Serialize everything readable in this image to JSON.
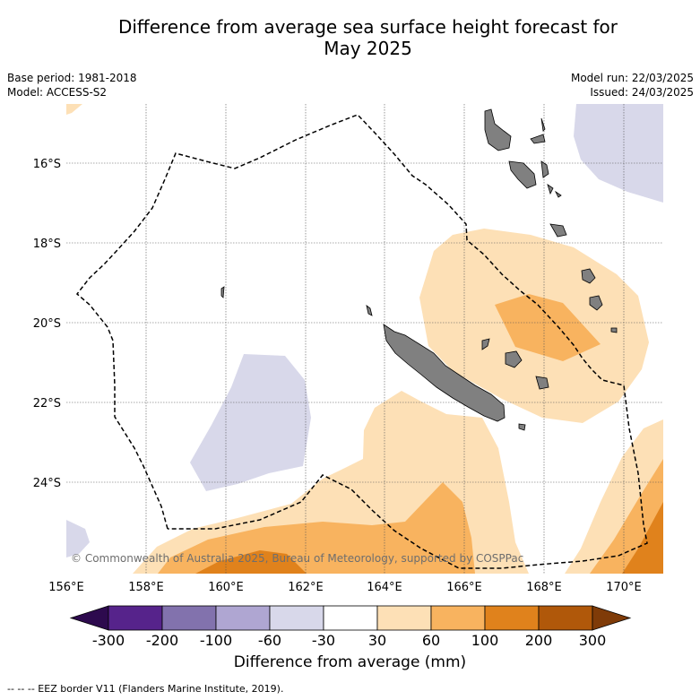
{
  "title_line1": "Difference from average sea surface height forecast for",
  "title_line2": "May 2025",
  "base_period": "Base period: 1981-2018",
  "model": "Model: ACCESS-S2",
  "model_run": "Model run: 22/03/2025",
  "issued": "Issued: 24/03/2025",
  "lat_labels": [
    "16°S",
    "18°S",
    "20°S",
    "22°S",
    "24°S"
  ],
  "lon_labels": [
    "156°E",
    "158°E",
    "160°E",
    "162°E",
    "164°E",
    "166°E",
    "168°E",
    "170°E"
  ],
  "copyright": "© Commonwealth of Australia 2025, Bureau of Meteorology, supported by COSPPac",
  "colorbar": {
    "tick_labels": [
      "-300",
      "-200",
      "-100",
      "-60",
      "-30",
      "30",
      "60",
      "100",
      "200",
      "300"
    ],
    "colors": [
      "#2d0a4e",
      "#56238b",
      "#8272ad",
      "#afa6d2",
      "#d8d8ea",
      "#ffffff",
      "#fde0b6",
      "#f8b35f",
      "#e0821c",
      "#b0580a",
      "#7f3b08"
    ],
    "label": "Difference from average (mm)"
  },
  "footnote": "--  --  -- EEZ border V11 (Flanders Marine Institute, 2019).",
  "colors": {
    "land": "#808080",
    "eez_line": "#000000",
    "grid": "#555555"
  }
}
